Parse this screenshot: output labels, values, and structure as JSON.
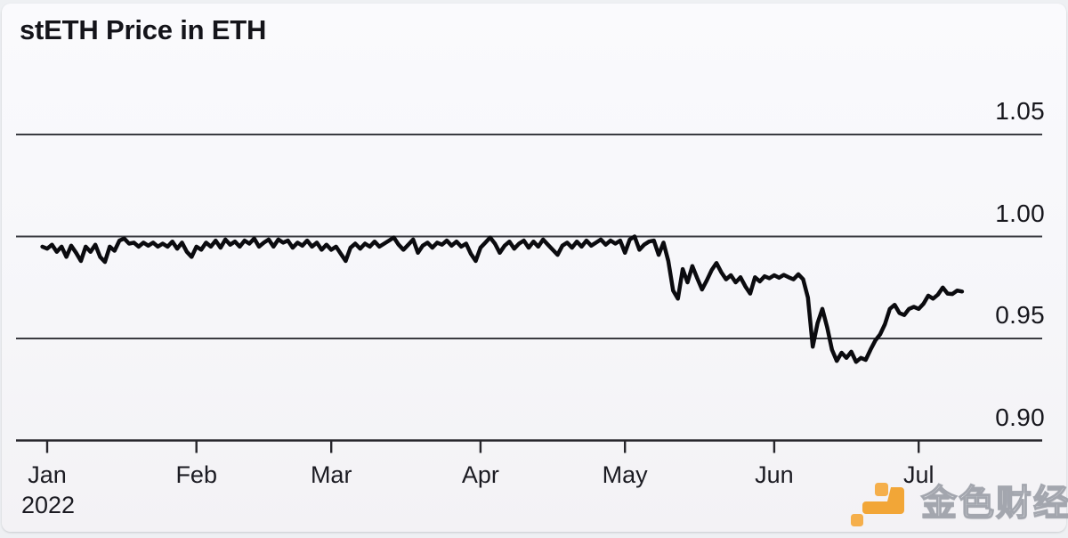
{
  "header": {
    "title": "stETH Price in ETH"
  },
  "chart_data": {
    "type": "line",
    "title": "stETH Price in ETH",
    "xlabel": "",
    "ylabel": "",
    "legend": "none",
    "grid": true,
    "x_axis": {
      "year_label": "2022",
      "tick_labels": [
        "Jan",
        "Feb",
        "Mar",
        "Apr",
        "May",
        "Jun",
        "Jul"
      ],
      "tick_days": [
        0,
        31,
        59,
        90,
        120,
        151,
        181
      ],
      "range_days": [
        -1,
        190
      ]
    },
    "y_axis": {
      "side": "right",
      "tick_labels": [
        "1.05",
        "1.00",
        "0.95",
        "0.90"
      ],
      "tick_values": [
        1.05,
        1.0,
        0.95,
        0.9
      ],
      "ylim": [
        0.885,
        1.06
      ],
      "gridline_values": [
        1.05,
        1.0,
        0.95
      ],
      "baseline_value": 0.9
    },
    "series": [
      {
        "name": "stETH price in ETH",
        "color": "#0b0b0f",
        "points": [
          [
            -1,
            0.995
          ],
          [
            0,
            0.994
          ],
          [
            1,
            0.996
          ],
          [
            2,
            0.9925
          ],
          [
            3,
            0.995
          ],
          [
            4,
            0.99
          ],
          [
            5,
            0.9955
          ],
          [
            6,
            0.992
          ],
          [
            7,
            0.988
          ],
          [
            8,
            0.995
          ],
          [
            9,
            0.9925
          ],
          [
            10,
            0.996
          ],
          [
            11,
            0.99
          ],
          [
            12,
            0.9875
          ],
          [
            13,
            0.995
          ],
          [
            14,
            0.993
          ],
          [
            15,
            0.998
          ],
          [
            16,
            0.999
          ],
          [
            17,
            0.9965
          ],
          [
            18,
            0.997
          ],
          [
            19,
            0.995
          ],
          [
            20,
            0.997
          ],
          [
            21,
            0.9955
          ],
          [
            22,
            0.997
          ],
          [
            23,
            0.995
          ],
          [
            24,
            0.9965
          ],
          [
            25,
            0.995
          ],
          [
            26,
            0.9975
          ],
          [
            27,
            0.994
          ],
          [
            28,
            0.997
          ],
          [
            29,
            0.9925
          ],
          [
            30,
            0.99
          ],
          [
            31,
            0.995
          ],
          [
            32,
            0.9935
          ],
          [
            33,
            0.997
          ],
          [
            34,
            0.995
          ],
          [
            35,
            0.998
          ],
          [
            36,
            0.9945
          ],
          [
            37,
            0.9985
          ],
          [
            38,
            0.996
          ],
          [
            39,
            0.9975
          ],
          [
            40,
            0.995
          ],
          [
            41,
            0.998
          ],
          [
            42,
            0.9965
          ],
          [
            43,
            0.999
          ],
          [
            44,
            0.995
          ],
          [
            45,
            0.997
          ],
          [
            46,
            0.9985
          ],
          [
            47,
            0.995
          ],
          [
            48,
            0.9985
          ],
          [
            49,
            0.997
          ],
          [
            50,
            0.998
          ],
          [
            51,
            0.9945
          ],
          [
            52,
            0.997
          ],
          [
            53,
            0.9955
          ],
          [
            54,
            0.998
          ],
          [
            55,
            0.995
          ],
          [
            56,
            0.997
          ],
          [
            57,
            0.9935
          ],
          [
            58,
            0.996
          ],
          [
            59,
            0.9935
          ],
          [
            60,
            0.995
          ],
          [
            61,
            0.9915
          ],
          [
            62,
            0.988
          ],
          [
            63,
            0.9945
          ],
          [
            64,
            0.9965
          ],
          [
            65,
            0.994
          ],
          [
            66,
            0.9965
          ],
          [
            67,
            0.995
          ],
          [
            68,
            0.9975
          ],
          [
            69,
            0.995
          ],
          [
            70,
            0.9965
          ],
          [
            71,
            0.998
          ],
          [
            72,
            0.9995
          ],
          [
            73,
            0.996
          ],
          [
            74,
            0.9935
          ],
          [
            75,
            0.996
          ],
          [
            76,
            0.9985
          ],
          [
            77,
            0.992
          ],
          [
            78,
            0.9955
          ],
          [
            79,
            0.997
          ],
          [
            80,
            0.9945
          ],
          [
            81,
            0.997
          ],
          [
            82,
            0.996
          ],
          [
            83,
            0.998
          ],
          [
            84,
            0.9955
          ],
          [
            85,
            0.9975
          ],
          [
            86,
            0.995
          ],
          [
            87,
            0.9965
          ],
          [
            88,
            0.9915
          ],
          [
            89,
            0.988
          ],
          [
            90,
            0.9945
          ],
          [
            91,
            0.997
          ],
          [
            92,
            0.9995
          ],
          [
            93,
            0.9965
          ],
          [
            94,
            0.992
          ],
          [
            95,
            0.9955
          ],
          [
            96,
            0.9975
          ],
          [
            97,
            0.994
          ],
          [
            98,
            0.9965
          ],
          [
            99,
            0.998
          ],
          [
            100,
            0.9945
          ],
          [
            101,
            0.9975
          ],
          [
            102,
            0.995
          ],
          [
            103,
            0.9985
          ],
          [
            104,
            0.996
          ],
          [
            105,
            0.9935
          ],
          [
            106,
            0.991
          ],
          [
            107,
            0.9955
          ],
          [
            108,
            0.997
          ],
          [
            109,
            0.9945
          ],
          [
            110,
            0.9975
          ],
          [
            111,
            0.995
          ],
          [
            112,
            0.998
          ],
          [
            113,
            0.9955
          ],
          [
            114,
            0.997
          ],
          [
            115,
            0.9985
          ],
          [
            116,
            0.996
          ],
          [
            117,
            0.998
          ],
          [
            118,
            0.9965
          ],
          [
            119,
            0.998
          ],
          [
            120,
            0.992
          ],
          [
            121,
            0.9985
          ],
          [
            122,
            1.0
          ],
          [
            123,
            0.9935
          ],
          [
            124,
            0.996
          ],
          [
            125,
            0.9975
          ],
          [
            126,
            0.998
          ],
          [
            127,
            0.991
          ],
          [
            128,
            0.997
          ],
          [
            129,
            0.988
          ],
          [
            130,
            0.9735
          ],
          [
            131,
            0.9695
          ],
          [
            132,
            0.984
          ],
          [
            133,
            0.9775
          ],
          [
            134,
            0.9855
          ],
          [
            135,
            0.9795
          ],
          [
            136,
            0.974
          ],
          [
            137,
            0.9785
          ],
          [
            138,
            0.9835
          ],
          [
            139,
            0.987
          ],
          [
            140,
            0.9825
          ],
          [
            141,
            0.979
          ],
          [
            142,
            0.981
          ],
          [
            143,
            0.9775
          ],
          [
            144,
            0.98
          ],
          [
            145,
            0.9755
          ],
          [
            146,
            0.972
          ],
          [
            147,
            0.98
          ],
          [
            148,
            0.978
          ],
          [
            149,
            0.9805
          ],
          [
            150,
            0.9795
          ],
          [
            151,
            0.981
          ],
          [
            152,
            0.9798
          ],
          [
            153,
            0.9812
          ],
          [
            154,
            0.98
          ],
          [
            155,
            0.979
          ],
          [
            156,
            0.9815
          ],
          [
            157,
            0.979
          ],
          [
            158,
            0.97
          ],
          [
            159,
            0.946
          ],
          [
            160,
            0.9575
          ],
          [
            161,
            0.9645
          ],
          [
            162,
            0.9555
          ],
          [
            163,
            0.9445
          ],
          [
            164,
            0.939
          ],
          [
            165,
            0.943
          ],
          [
            166,
            0.9405
          ],
          [
            167,
            0.9435
          ],
          [
            168,
            0.9385
          ],
          [
            169,
            0.9405
          ],
          [
            170,
            0.9395
          ],
          [
            171,
            0.9445
          ],
          [
            172,
            0.949
          ],
          [
            173,
            0.952
          ],
          [
            174,
            0.957
          ],
          [
            175,
            0.9645
          ],
          [
            176,
            0.9665
          ],
          [
            177,
            0.9625
          ],
          [
            178,
            0.9615
          ],
          [
            179,
            0.9645
          ],
          [
            180,
            0.9655
          ],
          [
            181,
            0.9645
          ],
          [
            182,
            0.967
          ],
          [
            183,
            0.971
          ],
          [
            184,
            0.9695
          ],
          [
            185,
            0.9715
          ],
          [
            186,
            0.975
          ],
          [
            187,
            0.972
          ],
          [
            188,
            0.9718
          ],
          [
            189,
            0.9735
          ],
          [
            190,
            0.973
          ]
        ]
      }
    ]
  },
  "watermark": {
    "text": "金色财经",
    "brand": "Jinse Finance",
    "logo_color": "#F2A637",
    "logo_color_light": "#F5AF4B",
    "text_fill": "#fbfbfd",
    "text_outline": "#a3a6ae"
  },
  "colors": {
    "panel_background": "#f7f7fa",
    "outer_background": "#eef0f3",
    "grid": "#3a3b41",
    "axis": "#26262b",
    "title": "#14141a",
    "tick_labels": "#1b1b22",
    "line": "#0b0b0f"
  }
}
